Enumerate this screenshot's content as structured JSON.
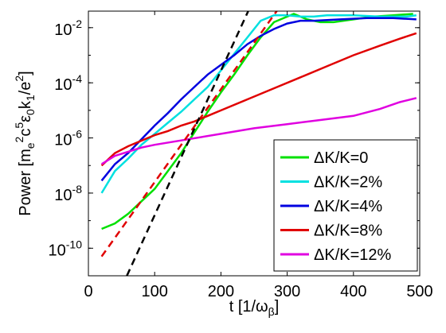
{
  "chart_data": {
    "type": "line",
    "xlabel": "t [1/ω_β]",
    "ylabel": "Power [m_e^2c^5ε_0k_1/e^2]",
    "xlim": [
      0,
      500
    ],
    "ylim_log10": [
      -11,
      -1.4
    ],
    "yscale": "log",
    "grid": false,
    "legend_position": "bottom-right",
    "x_ticks": [
      "0",
      "100",
      "200",
      "300",
      "400",
      "500"
    ],
    "y_ticks": [
      {
        "base": "10",
        "exp": "-10",
        "log": -10
      },
      {
        "base": "10",
        "exp": "-8",
        "log": -8
      },
      {
        "base": "10",
        "exp": "-6",
        "log": -6
      },
      {
        "base": "10",
        "exp": "-4",
        "log": -4
      },
      {
        "base": "10",
        "exp": "-2",
        "log": -2
      }
    ],
    "series": [
      {
        "name": "ΔK/K=0",
        "color": "#00e000",
        "style": "solid",
        "x": [
          20,
          40,
          60,
          80,
          100,
          120,
          140,
          160,
          180,
          200,
          220,
          240,
          260,
          280,
          300,
          310,
          330,
          350,
          370,
          400,
          430,
          460,
          490
        ],
        "y_log10": [
          -9.3,
          -9.1,
          -8.75,
          -8.3,
          -7.85,
          -7.2,
          -6.55,
          -5.8,
          -5.05,
          -4.35,
          -3.7,
          -3.0,
          -2.35,
          -1.8,
          -1.6,
          -1.5,
          -1.7,
          -1.8,
          -1.8,
          -1.7,
          -1.6,
          -1.55,
          -1.5
        ]
      },
      {
        "name": "ΔK/K=2%",
        "color": "#00e0e0",
        "style": "solid",
        "x": [
          20,
          40,
          60,
          80,
          100,
          120,
          140,
          160,
          180,
          200,
          220,
          240,
          260,
          280,
          300,
          320,
          340,
          360,
          400,
          440,
          480,
          495
        ],
        "y_log10": [
          -8.0,
          -7.2,
          -6.75,
          -6.25,
          -5.85,
          -5.45,
          -5.05,
          -4.6,
          -4.15,
          -3.55,
          -2.95,
          -2.35,
          -1.75,
          -1.55,
          -1.55,
          -1.6,
          -1.6,
          -1.55,
          -1.55,
          -1.6,
          -1.6,
          -1.55
        ]
      },
      {
        "name": "ΔK/K=4%",
        "color": "#0000e0",
        "style": "solid",
        "x": [
          20,
          40,
          60,
          80,
          100,
          120,
          140,
          160,
          180,
          200,
          220,
          240,
          260,
          280,
          300,
          320,
          340,
          380,
          420,
          460,
          495
        ],
        "y_log10": [
          -7.55,
          -6.95,
          -6.55,
          -6.05,
          -5.55,
          -5.1,
          -4.6,
          -4.15,
          -3.7,
          -3.35,
          -3.0,
          -2.6,
          -2.3,
          -2.05,
          -1.85,
          -1.75,
          -1.75,
          -1.7,
          -1.65,
          -1.65,
          -1.7
        ]
      },
      {
        "name": "ΔK/K=8%",
        "color": "#e00000",
        "style": "solid",
        "x": [
          20,
          40,
          60,
          80,
          100,
          120,
          140,
          160,
          180,
          200,
          240,
          280,
          320,
          360,
          400,
          440,
          470,
          495
        ],
        "y_log10": [
          -7.0,
          -6.55,
          -6.3,
          -6.1,
          -5.9,
          -5.75,
          -5.55,
          -5.4,
          -5.2,
          -5.0,
          -4.6,
          -4.2,
          -3.8,
          -3.4,
          -3.0,
          -2.65,
          -2.4,
          -2.2
        ]
      },
      {
        "name": "ΔK/K=12%",
        "color": "#e000e0",
        "style": "solid",
        "x": [
          20,
          40,
          60,
          80,
          100,
          150,
          200,
          250,
          300,
          350,
          400,
          440,
          470,
          495
        ],
        "y_log10": [
          -6.95,
          -6.65,
          -6.5,
          -6.35,
          -6.25,
          -6.05,
          -5.85,
          -5.65,
          -5.5,
          -5.35,
          -5.2,
          -4.95,
          -4.7,
          -4.55
        ]
      },
      {
        "name": "",
        "color": "#e00000",
        "style": "dashed",
        "x": [
          20,
          290
        ],
        "y_log10": [
          -10.3,
          -1.2
        ]
      },
      {
        "name": "",
        "color": "#000000",
        "style": "dashed",
        "x": [
          58,
          245
        ],
        "y_log10": [
          -11.0,
          -1.2
        ]
      }
    ]
  },
  "legend": {
    "items": [
      {
        "label": "ΔK/K=0",
        "color": "#00e000"
      },
      {
        "label": "ΔK/K=2%",
        "color": "#00e0e0"
      },
      {
        "label": "ΔK/K=4%",
        "color": "#0000e0"
      },
      {
        "label": "ΔK/K=8%",
        "color": "#e00000"
      },
      {
        "label": "ΔK/K=12%",
        "color": "#e000e0"
      }
    ]
  }
}
